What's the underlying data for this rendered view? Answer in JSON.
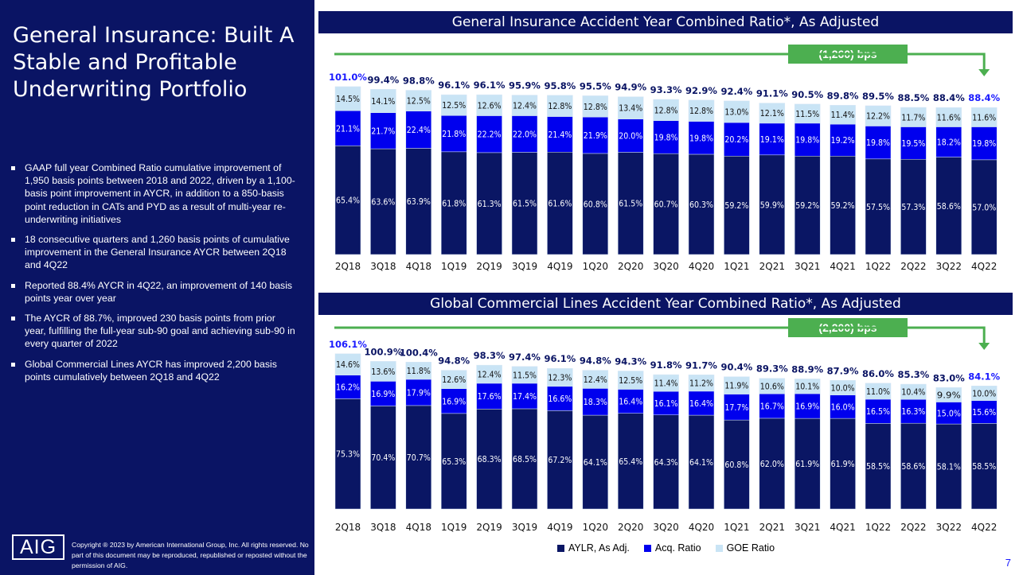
{
  "left": {
    "title": "General Insurance: Built A Stable and Profitable Underwriting Portfolio",
    "bullets": [
      "GAAP full year Combined Ratio cumulative improvement of 1,950 basis points between 2018 and 2022, driven by a 1,100-basis point improvement in AYCR, in addition to a 850-basis point reduction in CATs and PYD as a result of multi-year re-underwriting initiatives",
      "18 consecutive quarters and 1,260 basis points of cumulative improvement in the General Insurance AYCR between 2Q18 and 4Q22",
      "Reported 88.4% AYCR in 4Q22, an improvement of 140 basis points year over year",
      "The AYCR of 88.7%, improved 230 basis points from prior year, fulfilling the full-year sub-90 goal and achieving sub-90 in every quarter of 2022",
      "Global Commercial Lines AYCR has improved 2,200 basis points cumulatively between 2Q18 and 4Q22"
    ],
    "logo": "AIG",
    "copyright": "Copyright ® 2023 by American International Group, Inc. All rights reserved. No part of this document may be reproduced, republished or reposted without the permission of AIG."
  },
  "page_number": "7",
  "colors": {
    "aylr": "#0a1664",
    "acq": "#0000ee",
    "goe": "#c9e4f5",
    "highlight": "#1a1aff",
    "badge": "#4caf50",
    "navy": "#0a1464"
  },
  "legend": [
    "AYLR, As Adj.",
    "Acq. Ratio",
    "GOE Ratio"
  ],
  "chart_data": [
    {
      "type": "bar",
      "stacked": true,
      "title": "General Insurance Accident Year Combined Ratio*, As Adjusted",
      "annotation": "(1,260) bps",
      "categories": [
        "2Q18",
        "3Q18",
        "4Q18",
        "1Q19",
        "2Q19",
        "3Q19",
        "4Q19",
        "1Q20",
        "2Q20",
        "3Q20",
        "4Q20",
        "1Q21",
        "2Q21",
        "3Q21",
        "4Q21",
        "1Q22",
        "2Q22",
        "3Q22",
        "4Q22"
      ],
      "series": [
        {
          "name": "AYLR, As Adj.",
          "values": [
            65.4,
            63.6,
            63.9,
            61.8,
            61.3,
            61.5,
            61.6,
            60.8,
            61.5,
            60.7,
            60.3,
            59.2,
            59.9,
            59.2,
            59.2,
            57.5,
            57.3,
            58.6,
            57.0
          ]
        },
        {
          "name": "Acq. Ratio",
          "values": [
            21.1,
            21.7,
            22.4,
            21.8,
            22.2,
            22.0,
            21.4,
            21.9,
            20.0,
            19.8,
            19.8,
            20.2,
            19.1,
            19.8,
            19.2,
            19.8,
            19.5,
            18.2,
            19.8
          ]
        },
        {
          "name": "GOE Ratio",
          "values": [
            14.5,
            14.1,
            12.5,
            12.5,
            12.6,
            12.4,
            12.8,
            12.8,
            13.4,
            12.8,
            12.8,
            13.0,
            12.1,
            11.5,
            11.4,
            12.2,
            11.7,
            11.6,
            11.6
          ]
        }
      ],
      "totals": [
        "101.0%",
        "99.4%",
        "98.8%",
        "96.1%",
        "96.1%",
        "95.9%",
        "95.8%",
        "95.5%",
        "94.9%",
        "93.3%",
        "92.9%",
        "92.4%",
        "91.1%",
        "90.5%",
        "89.8%",
        "89.5%",
        "88.5%",
        "88.4%",
        "88.4%"
      ]
    },
    {
      "type": "bar",
      "stacked": true,
      "title": "Global Commercial Lines Accident Year Combined Ratio*, As Adjusted",
      "annotation": "(2,200) bps",
      "categories": [
        "2Q18",
        "3Q18",
        "4Q18",
        "1Q19",
        "2Q19",
        "3Q19",
        "4Q19",
        "1Q20",
        "2Q20",
        "3Q20",
        "4Q20",
        "1Q21",
        "2Q21",
        "3Q21",
        "4Q21",
        "1Q22",
        "2Q22",
        "3Q22",
        "4Q22"
      ],
      "series": [
        {
          "name": "AYLR, As Adj.",
          "values": [
            75.3,
            70.4,
            70.7,
            65.3,
            68.3,
            68.5,
            67.2,
            64.1,
            65.4,
            64.3,
            64.1,
            60.8,
            62.0,
            61.9,
            61.9,
            58.5,
            58.6,
            58.1,
            58.5
          ]
        },
        {
          "name": "Acq. Ratio",
          "values": [
            16.2,
            16.9,
            17.9,
            16.9,
            17.6,
            17.4,
            16.6,
            18.3,
            16.4,
            16.1,
            16.4,
            17.7,
            16.7,
            16.9,
            16.0,
            16.5,
            16.3,
            15.0,
            15.6
          ]
        },
        {
          "name": "GOE Ratio",
          "values": [
            14.6,
            13.6,
            11.8,
            12.6,
            12.4,
            11.5,
            12.3,
            12.4,
            12.5,
            11.4,
            11.2,
            11.9,
            10.6,
            10.1,
            10.0,
            11.0,
            10.4,
            9.9,
            10.0
          ]
        }
      ],
      "totals": [
        "106.1%",
        "100.9%",
        "100.4%",
        "94.8%",
        "98.3%",
        "97.4%",
        "96.1%",
        "94.8%",
        "94.3%",
        "91.8%",
        "91.7%",
        "90.4%",
        "89.3%",
        "88.9%",
        "87.9%",
        "86.0%",
        "85.3%",
        "83.0%",
        "84.1%"
      ]
    }
  ]
}
